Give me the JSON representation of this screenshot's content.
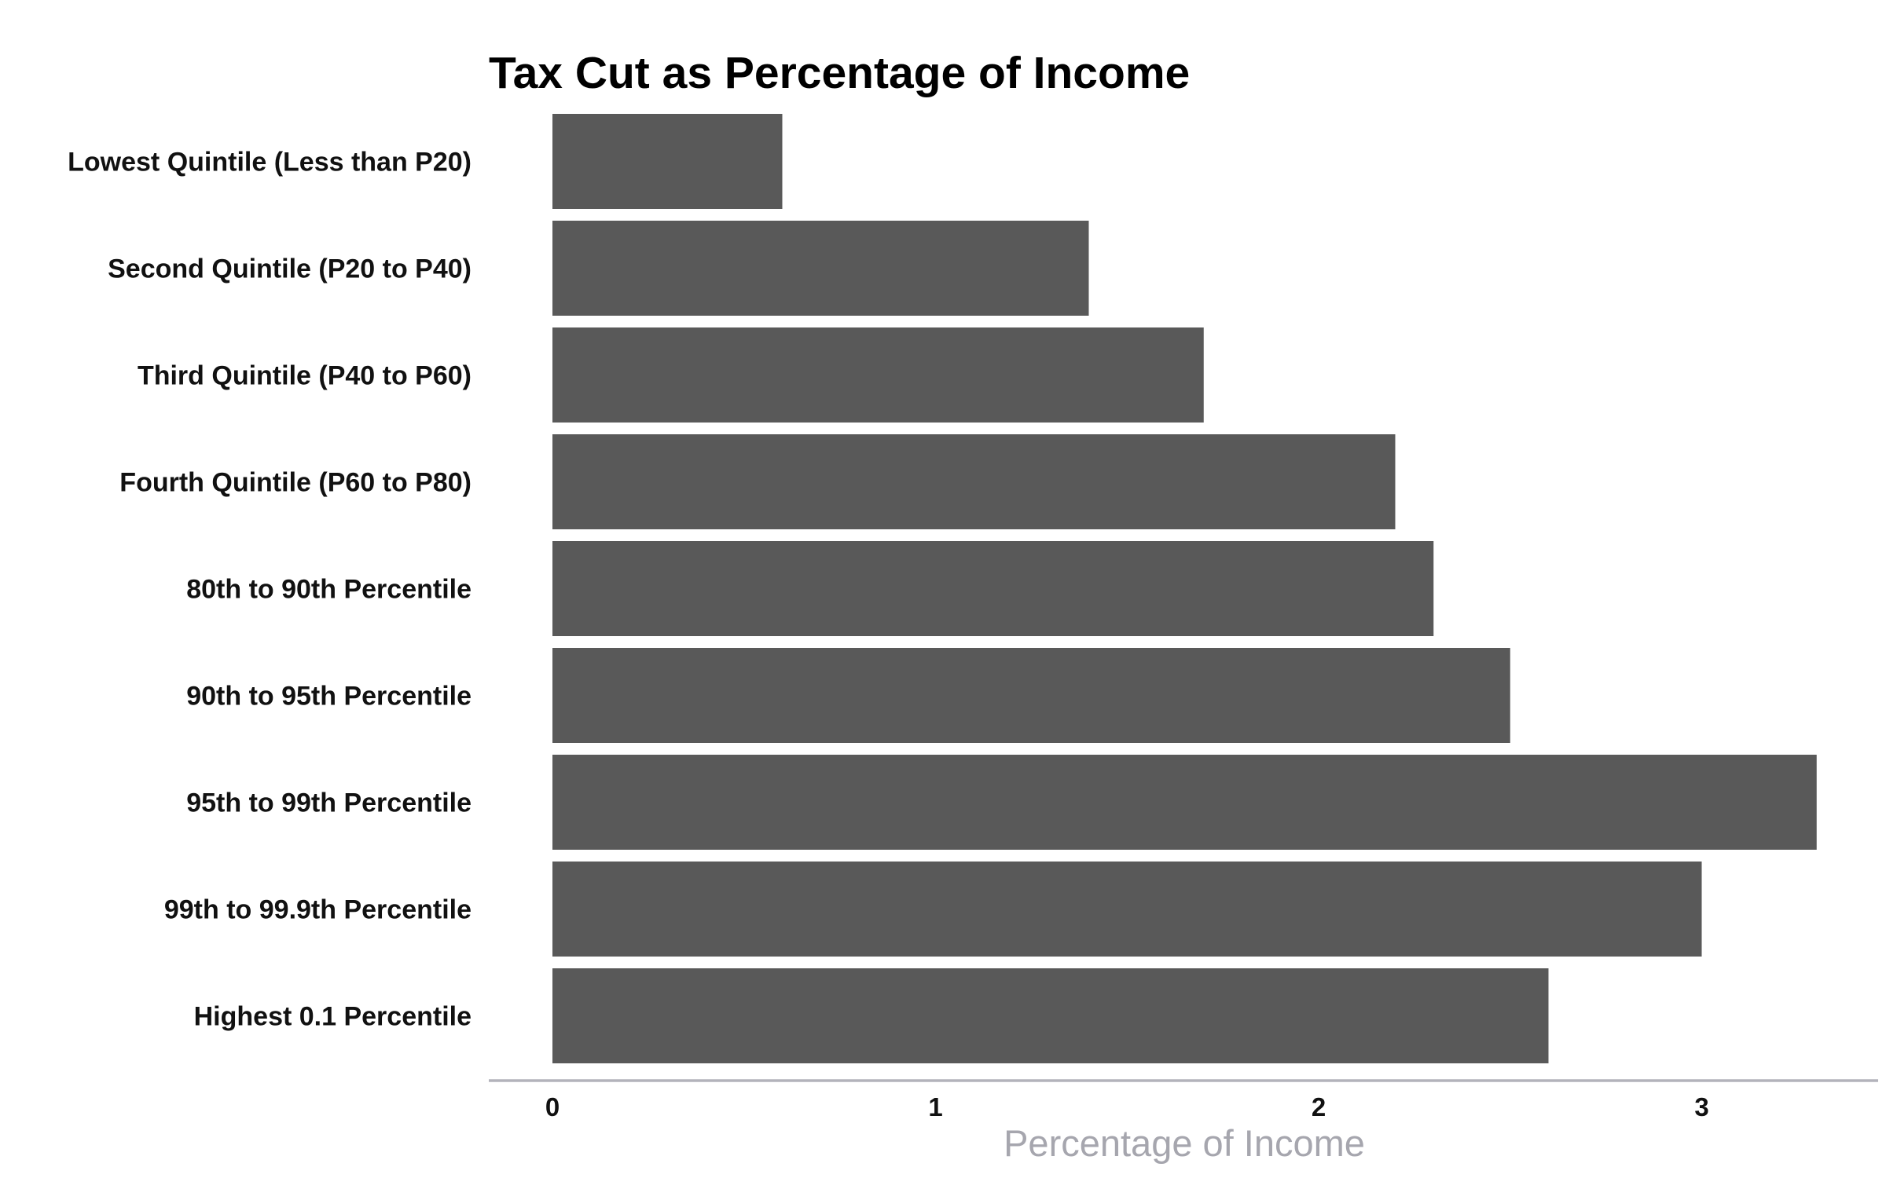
{
  "chart_data": {
    "type": "bar",
    "orientation": "horizontal",
    "title": "Tax Cut as Percentage of Income",
    "xlabel": "Percentage of Income",
    "ylabel": "",
    "categories": [
      "Lowest Quintile (Less than P20)",
      "Second Quintile (P20 to P40)",
      "Third Quintile (P40 to P60)",
      "Fourth Quintile (P60 to P80)",
      "80th to 90th Percentile",
      "90th to 95th Percentile",
      "95th to 99th Percentile",
      "99th to 99.9th Percentile",
      "Highest 0.1 Percentile"
    ],
    "values": [
      0.6,
      1.4,
      1.7,
      2.2,
      2.3,
      2.5,
      3.3,
      3.0,
      2.6
    ],
    "xticks": [
      "0",
      "1",
      "2",
      "3"
    ],
    "xlim": [
      0,
      3.3
    ],
    "grid": false,
    "legend": "none",
    "colors": {
      "bar": "#595959",
      "axis_line": "#b3b3bb",
      "axis_title": "#a6a6ae",
      "text": "#111111"
    }
  }
}
